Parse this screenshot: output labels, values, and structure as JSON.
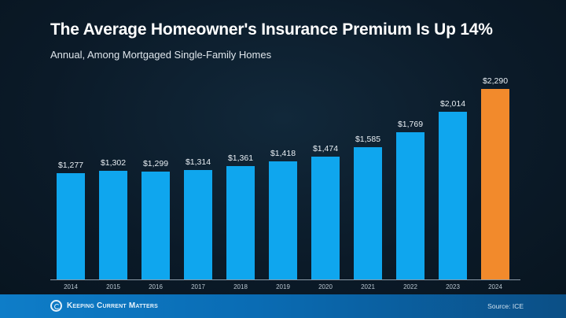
{
  "header": {
    "title": "The Average Homeowner's Insurance Premium Is Up 14%",
    "subtitle": "Annual, Among Mortgaged Single-Family Homes"
  },
  "footer": {
    "brand": "Keeping Current Matters",
    "source": "Source: ICE"
  },
  "colors": {
    "bar": "#0fa6ee",
    "highlight": "#f28a2c",
    "background": "#0c1a28"
  },
  "chart_data": {
    "type": "bar",
    "title": "The Average Homeowner's Insurance Premium Is Up 14%",
    "subtitle": "Annual, Among Mortgaged Single-Family Homes",
    "categories": [
      "2014",
      "2015",
      "2016",
      "2017",
      "2018",
      "2019",
      "2020",
      "2021",
      "2022",
      "2023",
      "2024"
    ],
    "values": [
      1277,
      1302,
      1299,
      1314,
      1361,
      1418,
      1474,
      1585,
      1769,
      2014,
      2290
    ],
    "labels": [
      "$1,277",
      "$1,302",
      "$1,299",
      "$1,314",
      "$1,361",
      "$1,418",
      "$1,474",
      "$1,585",
      "$1,769",
      "$2,014",
      "$2,290"
    ],
    "highlight_index": 10,
    "xlabel": "",
    "ylabel": "",
    "ylim": [
      0,
      2400
    ],
    "grid": false,
    "legend": "none",
    "source": "Source: ICE"
  }
}
